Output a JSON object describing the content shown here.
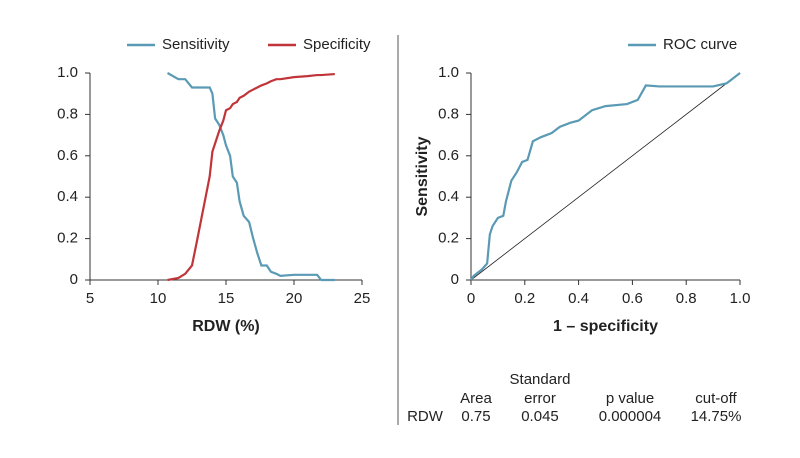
{
  "chart_data": [
    {
      "type": "line",
      "xlabel": "RDW (%)",
      "x": [
        10.7,
        11.5,
        12,
        12.5,
        12.9,
        13.2,
        13.5,
        13.8,
        14,
        14.2,
        14.5,
        14.8,
        15,
        15.3,
        15.5,
        15.8,
        16,
        16.3,
        16.7,
        17,
        17.3,
        17.6,
        18,
        18.3,
        18.7,
        19,
        20,
        21,
        21.7,
        22,
        23
      ],
      "series": [
        {
          "name": "Sensitivity",
          "color": "#5a9ab4",
          "values": [
            1.0,
            0.97,
            0.97,
            0.93,
            0.93,
            0.93,
            0.93,
            0.93,
            0.9,
            0.78,
            0.75,
            0.7,
            0.65,
            0.6,
            0.5,
            0.47,
            0.38,
            0.31,
            0.28,
            0.2,
            0.13,
            0.07,
            0.07,
            0.04,
            0.03,
            0.02,
            0.025,
            0.025,
            0.025,
            0,
            0
          ]
        },
        {
          "name": "Specificity",
          "color": "#c1353a",
          "values": [
            0,
            0.01,
            0.03,
            0.07,
            0.2,
            0.3,
            0.4,
            0.5,
            0.62,
            0.66,
            0.72,
            0.77,
            0.82,
            0.83,
            0.85,
            0.86,
            0.88,
            0.89,
            0.91,
            0.92,
            0.93,
            0.94,
            0.95,
            0.96,
            0.97,
            0.97,
            0.98,
            0.985,
            0.99,
            0.99,
            0.995
          ]
        }
      ],
      "xlim": [
        5,
        25
      ],
      "xticks": [
        5,
        10,
        15,
        20,
        25
      ],
      "ylim": [
        0,
        1
      ],
      "yticks": [
        0,
        0.2,
        0.4,
        0.6,
        0.8,
        {
          "value": 1,
          "label": "1.0"
        }
      ]
    },
    {
      "type": "line",
      "xlabel": "1 – specificity",
      "ylabel": "Sensitivity",
      "diagonal": true,
      "x": [
        0,
        0.01,
        0.02,
        0.04,
        0.06,
        0.07,
        0.08,
        0.1,
        0.12,
        0.13,
        0.15,
        0.17,
        0.19,
        0.21,
        0.23,
        0.26,
        0.3,
        0.33,
        0.37,
        0.4,
        0.45,
        0.5,
        0.58,
        0.62,
        0.65,
        0.7,
        0.8,
        0.9,
        0.95,
        0.97,
        1.0
      ],
      "series": [
        {
          "name": "ROC curve",
          "color": "#5a9ab4",
          "values": [
            0,
            0.02,
            0.03,
            0.05,
            0.08,
            0.22,
            0.26,
            0.3,
            0.31,
            0.38,
            0.48,
            0.52,
            0.57,
            0.58,
            0.67,
            0.69,
            0.71,
            0.74,
            0.76,
            0.77,
            0.82,
            0.84,
            0.85,
            0.87,
            0.94,
            0.935,
            0.935,
            0.935,
            0.95,
            0.97,
            1.0
          ]
        }
      ],
      "xlim": [
        0,
        1
      ],
      "xticks": [
        0,
        0.2,
        0.4,
        0.6,
        0.8,
        {
          "value": 1,
          "label": "1.0"
        }
      ],
      "ylim": [
        0,
        1
      ],
      "yticks": [
        0,
        0.2,
        0.4,
        0.6,
        0.8,
        {
          "value": 1,
          "label": "1.0"
        }
      ]
    }
  ],
  "table": {
    "headers": [
      "Area",
      "Standard error",
      "p value",
      "cut-off"
    ],
    "rows": [
      [
        "RDW",
        "0.75",
        "0.045",
        "0.000004",
        "14.75%"
      ]
    ]
  }
}
